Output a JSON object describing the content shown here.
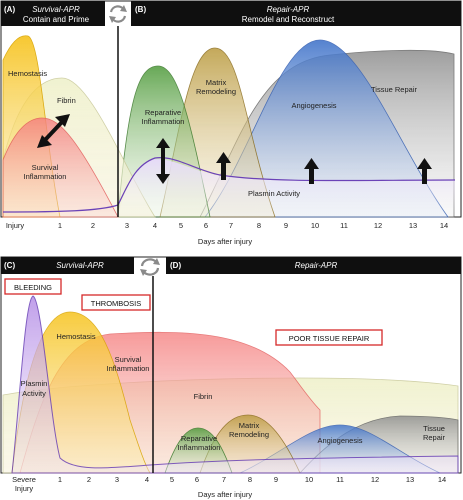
{
  "top": {
    "panel_a": {
      "letter": "(A)",
      "title": "Survival-APR",
      "subtitle": "Contain and Prime"
    },
    "panel_b": {
      "letter": "(B)",
      "title": "Repair-APR",
      "subtitle": "Remodel and Reconstruct"
    },
    "curves": {
      "hemostasis": "Hemostasis",
      "fibrin": "Fibrin",
      "survival_1": "Survival",
      "survival_2": "Inflammation",
      "reparative_1": "Reparative",
      "reparative_2": "Inflammation",
      "matrix_1": "Matrix",
      "matrix_2": "Remodeling",
      "angiogenesis": "Angiogenesis",
      "tissue_repair": "Tissue Repair",
      "plasmin": "Plasmin Activity"
    },
    "ticks": [
      "Injury",
      "1",
      "2",
      "3",
      "4",
      "5",
      "6",
      "7",
      "8",
      "9",
      "10",
      "11",
      "12",
      "13",
      "14"
    ],
    "xlabel": "Days after injury"
  },
  "bottom": {
    "panel_c": {
      "letter": "(C)",
      "title": "Survival-APR"
    },
    "panel_d": {
      "letter": "(D)",
      "title": "Repair-APR"
    },
    "boxes": {
      "bleeding": "BLEEDING",
      "thrombosis": "THROMBOSIS",
      "poor": "POOR TISSUE REPAIR"
    },
    "curves": {
      "plasmin_1": "Plasmin",
      "plasmin_2": "Activity",
      "hemostasis": "Hemostasis",
      "survival_1": "Survival",
      "survival_2": "Inflammation",
      "fibrin": "Fibrin",
      "reparative_1": "Reparative",
      "reparative_2": "Inflammation",
      "matrix_1": "Matrix",
      "matrix_2": "Remodeling",
      "angiogenesis": "Angiogenesis",
      "tissue_1": "Tissue",
      "tissue_2": "Repair"
    },
    "ticks": [
      "Severe",
      "1",
      "2",
      "3",
      "4",
      "5",
      "6",
      "7",
      "8",
      "9",
      "10",
      "11",
      "12",
      "13",
      "14"
    ],
    "tick0_line2": "Injury",
    "xlabel": "Days after injury"
  }
}
